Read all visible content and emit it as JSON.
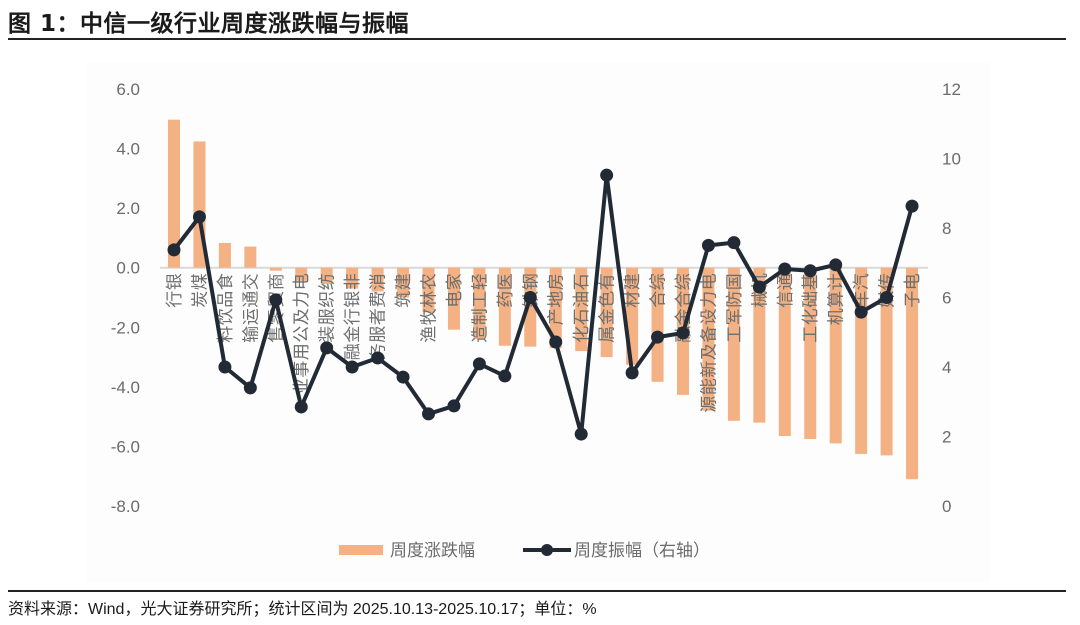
{
  "header": {
    "title": "图 1：中信一级行业周度涨跌幅与振幅"
  },
  "footer": {
    "source": "资料来源：Wind，光大证券研究所；统计区间为 2025.10.13-2025.10.17；单位：%"
  },
  "colors": {
    "bar": "#F4B183",
    "line": "#222A35",
    "axis_text": "#6B6B6B",
    "zero_line": "#D9D9D9"
  },
  "legend": {
    "bar_label": "周度涨跌幅",
    "line_label": "周度振幅（右轴）"
  },
  "chart_data": {
    "type": "bar+line",
    "title": "中信一级行业周度涨跌幅与振幅",
    "categories": [
      "银行",
      "煤炭",
      "食品饮料",
      "交通运输",
      "商贸零售",
      "电力及公用事业",
      "纺织服装",
      "非银行金融",
      "消费者服务",
      "建筑",
      "农林牧渔",
      "家电",
      "轻工制造",
      "医药",
      "钢铁",
      "房地产",
      "石油石化",
      "有色金属",
      "建材",
      "综合",
      "综合金融",
      "电力设备及新能源",
      "国防军工",
      "机械",
      "通信",
      "基础化工",
      "计算机",
      "汽车",
      "传媒",
      "电子"
    ],
    "series": [
      {
        "name": "周度涨跌幅",
        "type": "bar",
        "axis": "left",
        "values": [
          4.97,
          4.24,
          0.83,
          0.71,
          -0.1,
          -0.44,
          -0.55,
          -0.7,
          -0.8,
          -1.0,
          -1.5,
          -2.08,
          -2.4,
          -2.62,
          -2.65,
          -2.7,
          -2.8,
          -3.0,
          -3.26,
          -3.83,
          -4.27,
          -4.8,
          -5.14,
          -5.2,
          -5.65,
          -5.75,
          -5.9,
          -6.25,
          -6.3,
          -7.1
        ]
      },
      {
        "name": "周度振幅（右轴）",
        "type": "line",
        "axis": "right",
        "values": [
          7.37,
          8.32,
          4.0,
          3.4,
          5.93,
          2.85,
          4.55,
          4.0,
          4.26,
          3.71,
          2.65,
          2.88,
          4.09,
          3.74,
          6.0,
          4.72,
          2.07,
          9.52,
          3.83,
          4.86,
          4.98,
          7.5,
          7.58,
          6.3,
          6.82,
          6.77,
          6.94,
          5.58,
          6.0,
          8.63
        ]
      }
    ],
    "left_axis": {
      "ticks": [
        "6.0",
        "4.0",
        "2.0",
        "0.0",
        "-2.0",
        "-4.0",
        "-6.0",
        "-8.0"
      ],
      "ylim": [
        -8,
        6
      ]
    },
    "right_axis": {
      "ticks": [
        "12",
        "10",
        "8",
        "6",
        "4",
        "2",
        "0"
      ],
      "ylim": [
        0,
        12
      ]
    },
    "xlabel": "",
    "ylabel": "",
    "grid": false,
    "legend_position": "bottom"
  }
}
